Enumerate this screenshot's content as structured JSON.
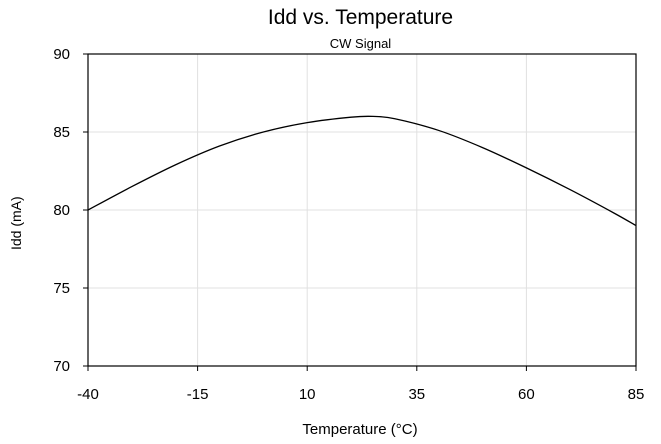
{
  "chart_data": {
    "type": "line",
    "title": "Idd vs. Temperature",
    "subtitle": "CW Signal",
    "xlabel": "Temperature (°C)",
    "ylabel": "Idd (mA)",
    "xlim": [
      -40,
      85
    ],
    "ylim": [
      70,
      90
    ],
    "xticks": [
      -40,
      -15,
      10,
      35,
      60,
      85
    ],
    "yticks": [
      70,
      75,
      80,
      85,
      90
    ],
    "grid": true,
    "series": [
      {
        "x": [
          -40,
          -30,
          -20,
          -10,
          0,
          10,
          20,
          25,
          30,
          40,
          50,
          60,
          70,
          80,
          85
        ],
        "y": [
          80.0,
          81.5,
          82.9,
          84.1,
          85.0,
          85.6,
          85.95,
          86.0,
          85.85,
          85.1,
          84.0,
          82.7,
          81.3,
          79.8,
          79.0
        ]
      }
    ]
  },
  "colors": {
    "line": "#000000",
    "grid": "#e0e0e0",
    "axis": "#000000"
  }
}
